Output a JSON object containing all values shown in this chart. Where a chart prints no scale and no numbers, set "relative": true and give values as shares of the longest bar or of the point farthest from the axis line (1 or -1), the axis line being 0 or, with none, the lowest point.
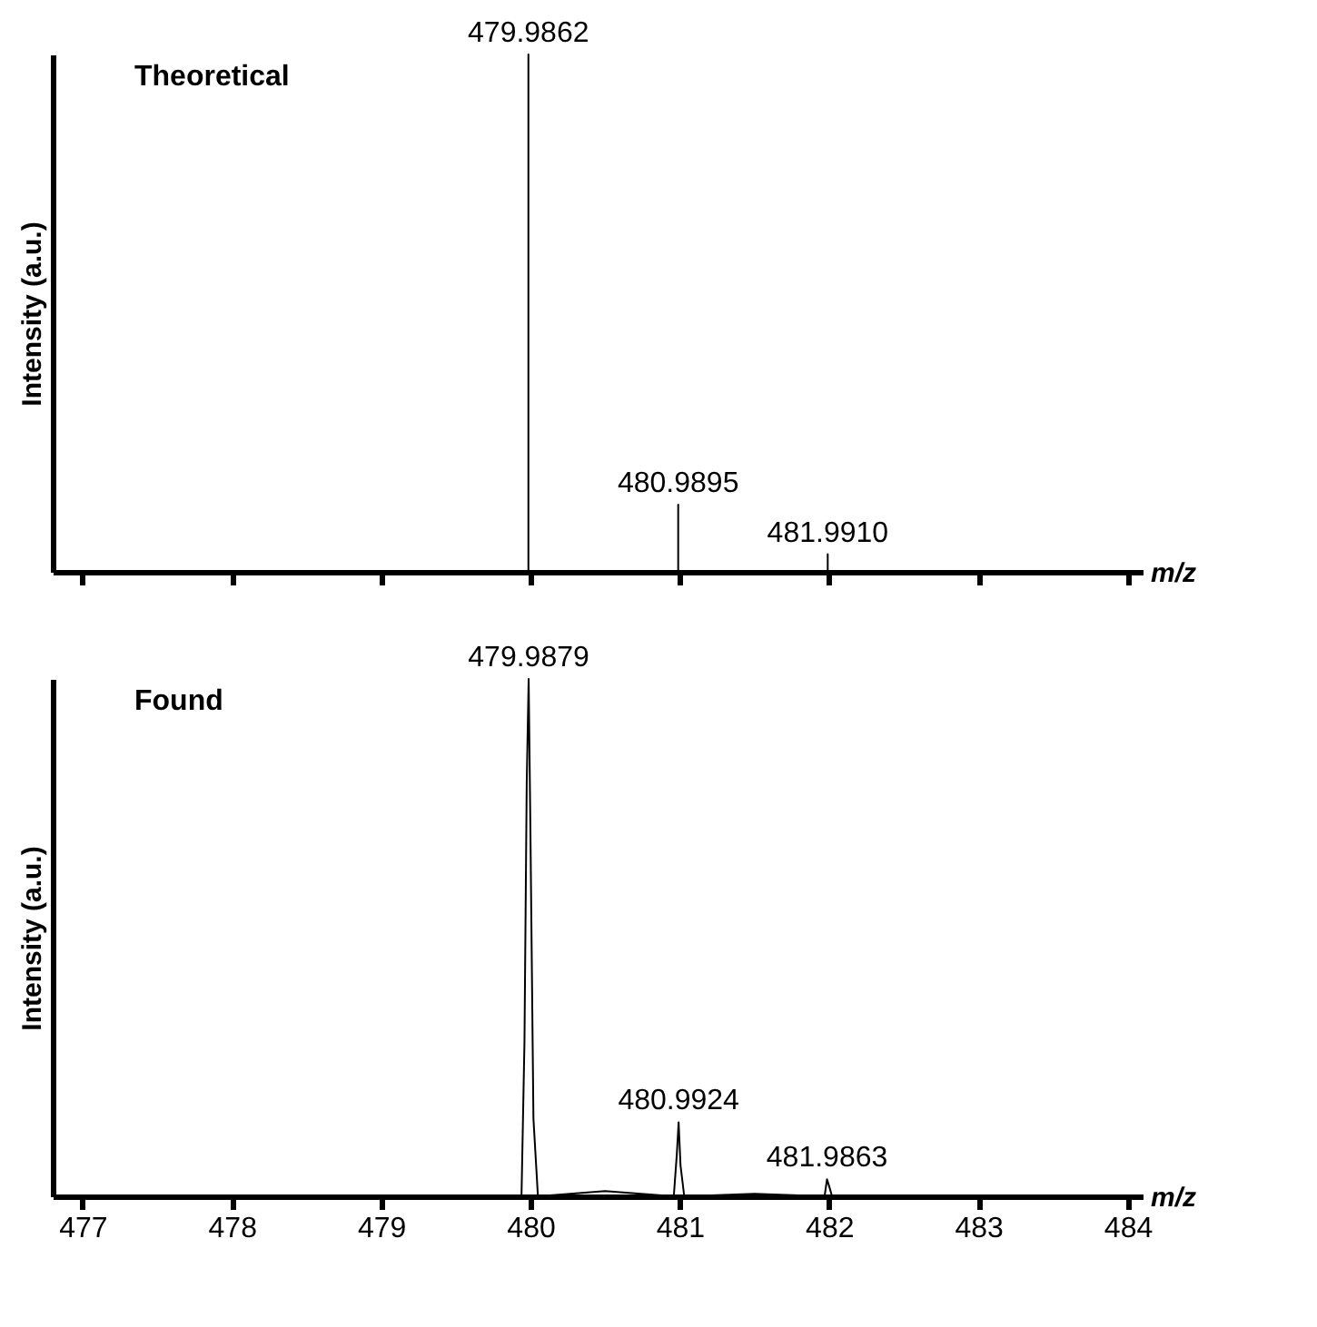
{
  "chart_data": [
    {
      "type": "line",
      "title": "Theoretical",
      "ylabel": "Intensity (a.u.)",
      "xlabel": "m/z",
      "relative": true,
      "tick_labels": false,
      "xlim": [
        476.8,
        484.1
      ],
      "xticks": [
        477,
        478,
        479,
        480,
        481,
        482,
        483,
        484
      ],
      "x": [
        477,
        479.9862,
        479.9862,
        479.9862,
        480.9895,
        480.9895,
        480.9895,
        481.991,
        481.991,
        481.991,
        484
      ],
      "series": [
        {
          "color": "#000000",
          "values": [
            0,
            0,
            1,
            0,
            0,
            0.13,
            0,
            0,
            0.034,
            0,
            0
          ]
        }
      ],
      "annotations": [
        {
          "text": "479.9862",
          "x": 479.9862,
          "y": 1
        },
        {
          "text": "480.9895",
          "x": 480.9895,
          "y": 0.13
        },
        {
          "text": "481.9910",
          "x": 481.991,
          "y": 0.034
        }
      ]
    },
    {
      "type": "line",
      "title": "Found",
      "ylabel": "Intensity (a.u.)",
      "xlabel": "m/z",
      "relative": true,
      "tick_labels": "x",
      "xlim": [
        476.8,
        484.1
      ],
      "xticks": [
        477,
        478,
        479,
        480,
        481,
        482,
        483,
        484
      ],
      "x": [
        477,
        479.5,
        479.94,
        479.96,
        479.975,
        479.9879,
        480.0,
        480.02,
        480.05,
        480.5,
        480.96,
        480.98,
        480.9924,
        481.005,
        481.03,
        481.5,
        481.97,
        481.9863,
        482.0,
        482.02,
        484
      ],
      "series": [
        {
          "color": "#000000",
          "values": [
            0,
            0,
            0,
            0.3,
            0.8,
            1,
            0.7,
            0.15,
            0,
            0.01,
            0,
            0.08,
            0.143,
            0.06,
            0,
            0.005,
            0,
            0.033,
            0.02,
            0,
            0
          ]
        }
      ],
      "annotations": [
        {
          "text": "479.9879",
          "x": 479.9879,
          "y": 1
        },
        {
          "text": "480.9924",
          "x": 480.9924,
          "y": 0.143
        },
        {
          "text": "481.9863",
          "x": 481.9863,
          "y": 0.033
        }
      ]
    }
  ]
}
